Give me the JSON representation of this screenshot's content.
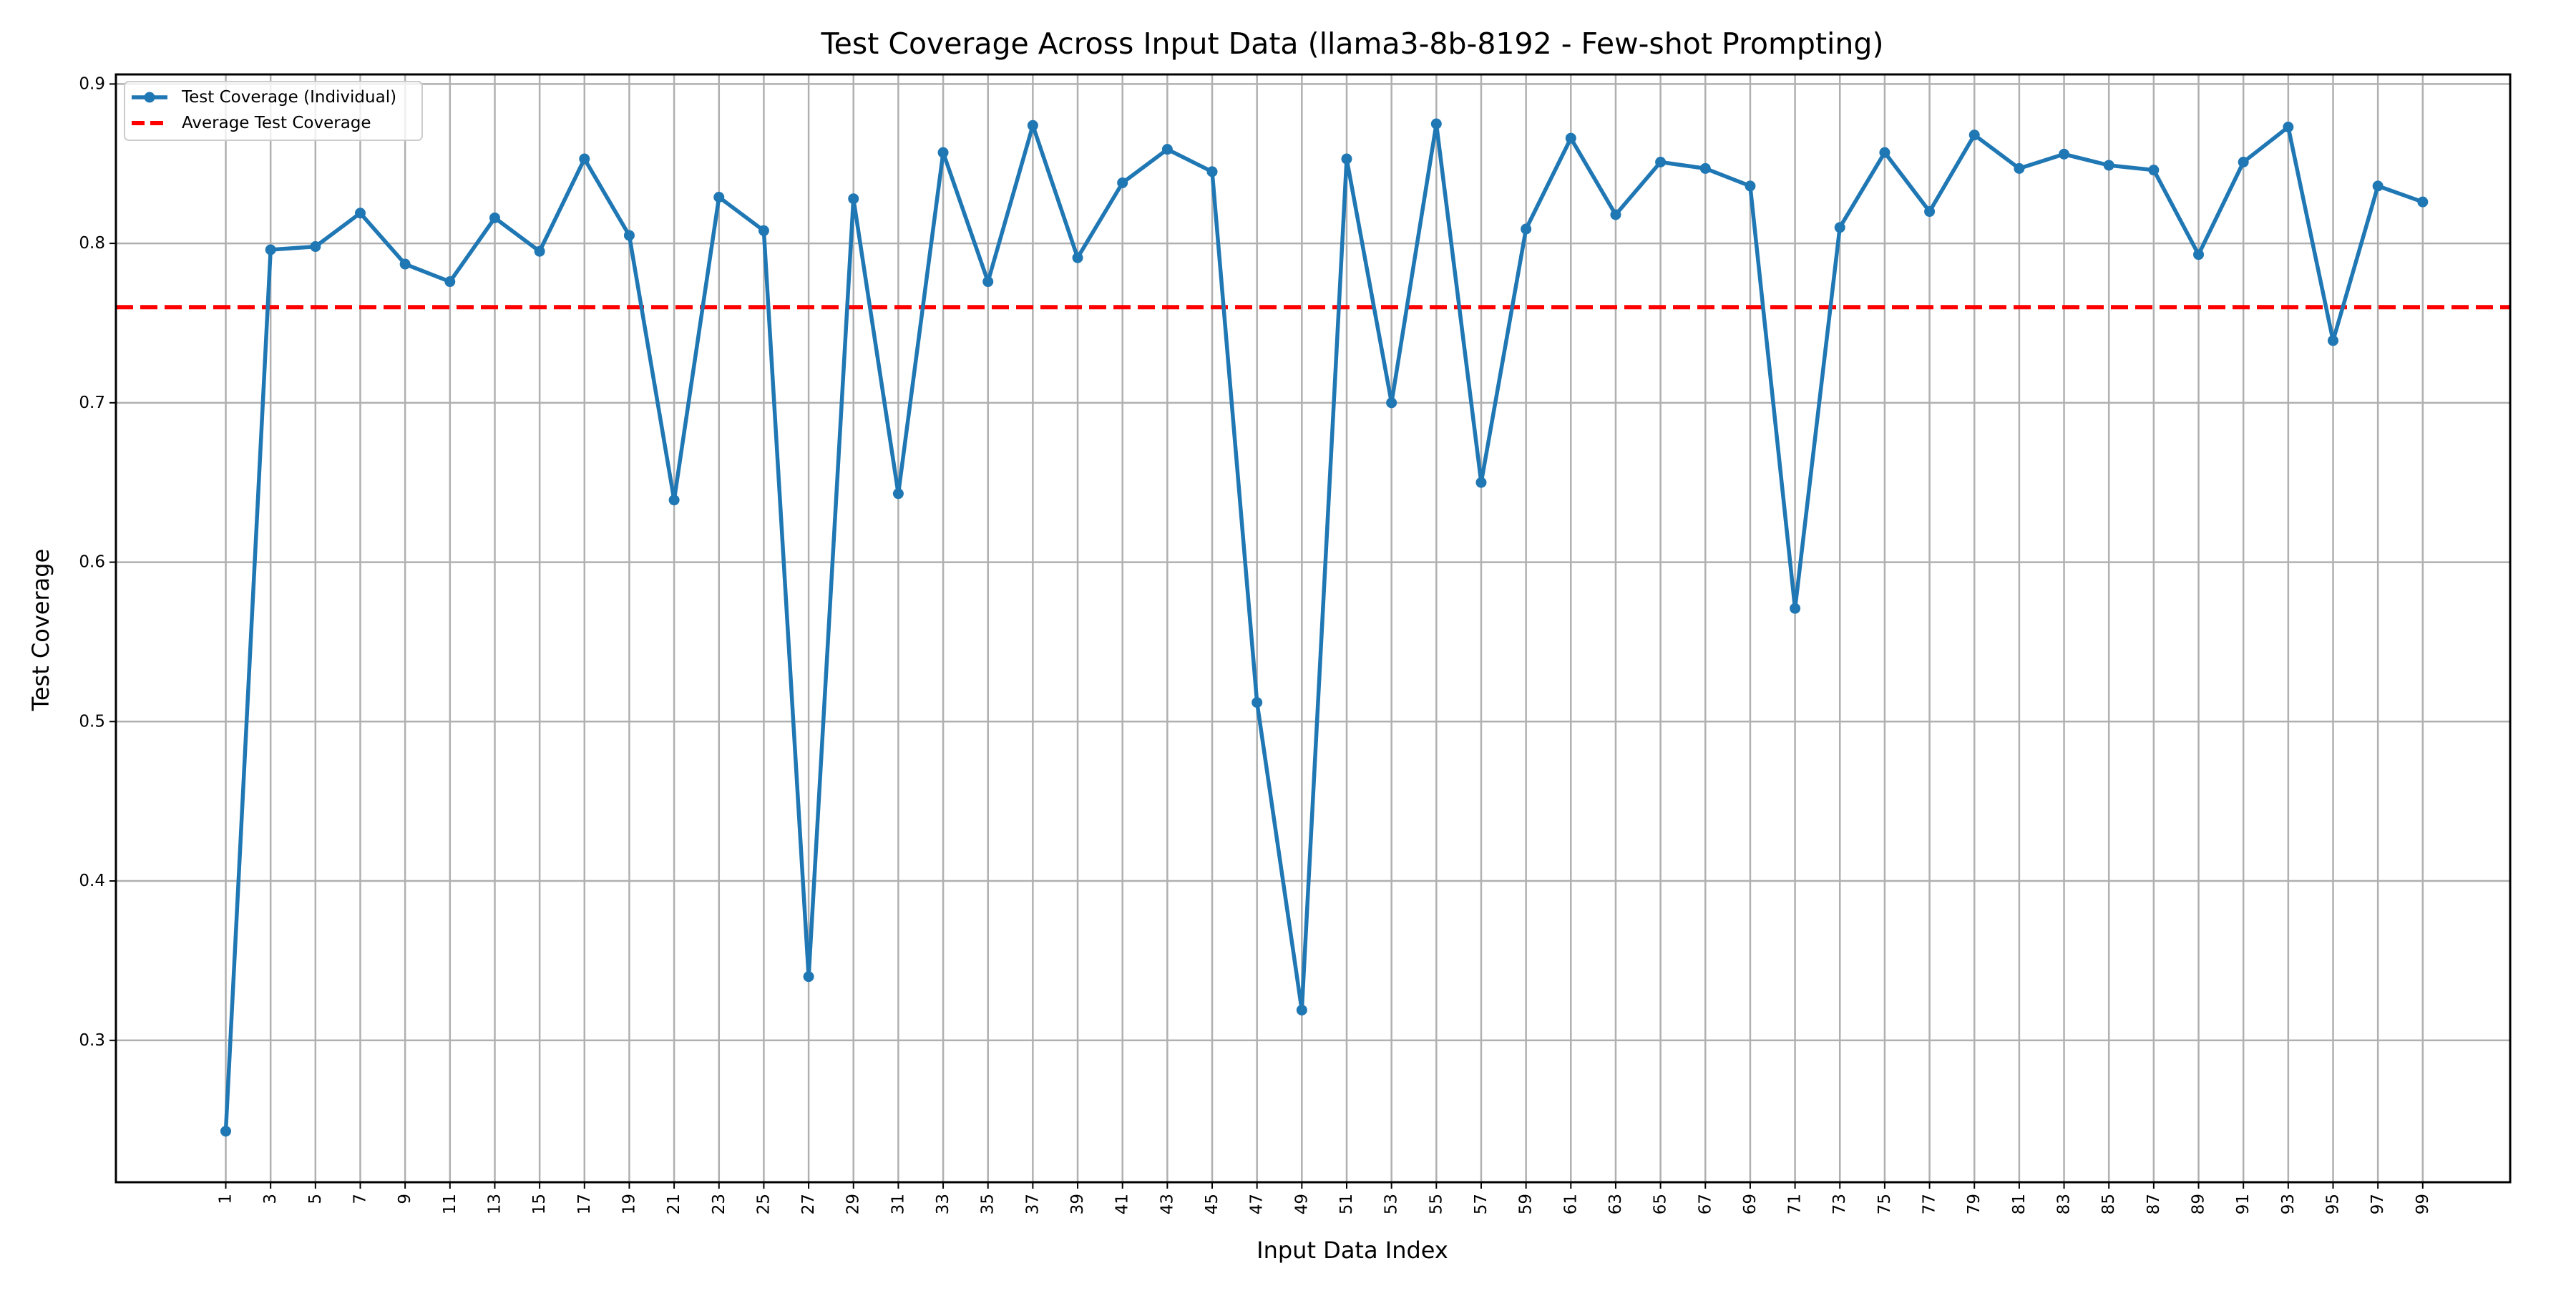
{
  "chart_data": {
    "type": "line",
    "title": "Test Coverage Across Input Data (llama3-8b-8192 - Few-shot Prompting)",
    "xlabel": "Input Data Index",
    "ylabel": "Test Coverage",
    "x": [
      1,
      3,
      5,
      7,
      9,
      11,
      13,
      15,
      17,
      19,
      21,
      23,
      25,
      27,
      29,
      31,
      33,
      35,
      37,
      39,
      41,
      43,
      45,
      47,
      49,
      51,
      53,
      55,
      57,
      59,
      61,
      63,
      65,
      67,
      69,
      71,
      73,
      75,
      77,
      79,
      81,
      83,
      85,
      87,
      89,
      91,
      93,
      95,
      97,
      99
    ],
    "x_ticks": [
      "1",
      "3",
      "5",
      "7",
      "9",
      "11",
      "13",
      "15",
      "17",
      "19",
      "21",
      "23",
      "25",
      "27",
      "29",
      "31",
      "33",
      "35",
      "37",
      "39",
      "41",
      "43",
      "45",
      "47",
      "49",
      "51",
      "53",
      "55",
      "57",
      "59",
      "61",
      "63",
      "65",
      "67",
      "69",
      "71",
      "73",
      "75",
      "77",
      "79",
      "81",
      "83",
      "85",
      "87",
      "89",
      "91",
      "93",
      "95",
      "97",
      "99"
    ],
    "y_ticks": [
      "0.3",
      "0.4",
      "0.5",
      "0.6",
      "0.7",
      "0.8",
      "0.9"
    ],
    "xlim": [
      -3.9,
      102.9
    ],
    "ylim": [
      0.211,
      0.906
    ],
    "grid": true,
    "legend_position": "top-left",
    "series": [
      {
        "name": "Test Coverage (Individual)",
        "style": "line-with-markers",
        "color": "#1f77b4",
        "values": [
          0.243,
          0.796,
          0.798,
          0.819,
          0.787,
          0.776,
          0.816,
          0.795,
          0.853,
          0.805,
          0.639,
          0.829,
          0.808,
          0.34,
          0.828,
          0.643,
          0.857,
          0.776,
          0.874,
          0.791,
          0.838,
          0.859,
          0.845,
          0.512,
          0.319,
          0.853,
          0.7,
          0.875,
          0.65,
          0.809,
          0.866,
          0.818,
          0.851,
          0.847,
          0.836,
          0.571,
          0.81,
          0.857,
          0.82,
          0.868,
          0.847,
          0.856,
          0.849,
          0.846,
          0.793,
          0.851,
          0.873,
          0.739,
          0.836,
          0.826
        ]
      },
      {
        "name": "Average Test Coverage",
        "style": "dashed-horizontal",
        "color": "#ff0000",
        "value": 0.76
      }
    ]
  }
}
